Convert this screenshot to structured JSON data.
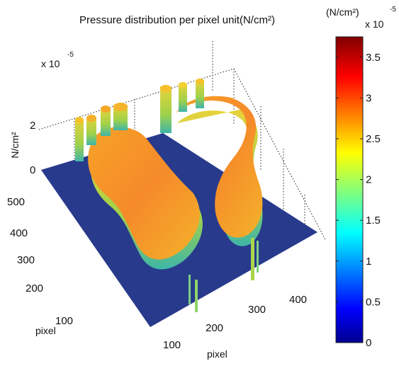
{
  "chart_data": {
    "type": "surface3d",
    "title": "Pressure distribution per pixel unit(N/cm²)",
    "zlabel": "N/cm²",
    "z_exponent": "x 10",
    "z_exponent_power": "-5",
    "z_ticks": [
      "0",
      "2"
    ],
    "xlabel": "pixel",
    "x_ticks": [
      "100",
      "200",
      "300",
      "400"
    ],
    "ylabel": "pixel",
    "y_ticks": [
      "100",
      "200",
      "300",
      "400",
      "500"
    ],
    "colorbar": {
      "label": "(N/cm²)",
      "exponent": "x 10",
      "exponent_power": "-5",
      "range": [
        0,
        3.75
      ],
      "colormap": "jet",
      "ticks": [
        {
          "value": 0,
          "label": "0"
        },
        {
          "value": 0.5,
          "label": "0.5"
        },
        {
          "value": 1,
          "label": "1"
        },
        {
          "value": 1.5,
          "label": "1.5"
        },
        {
          "value": 2,
          "label": "2"
        },
        {
          "value": 2.5,
          "label": "2.5"
        },
        {
          "value": 3,
          "label": "3"
        },
        {
          "value": 3.5,
          "label": "3.5"
        }
      ]
    },
    "surface": {
      "description_visible": "two footprints, left foot and right foot, on a zero-pressure floor",
      "floor_value": 0,
      "footprint_values": [
        2.4,
        3.2
      ]
    }
  }
}
